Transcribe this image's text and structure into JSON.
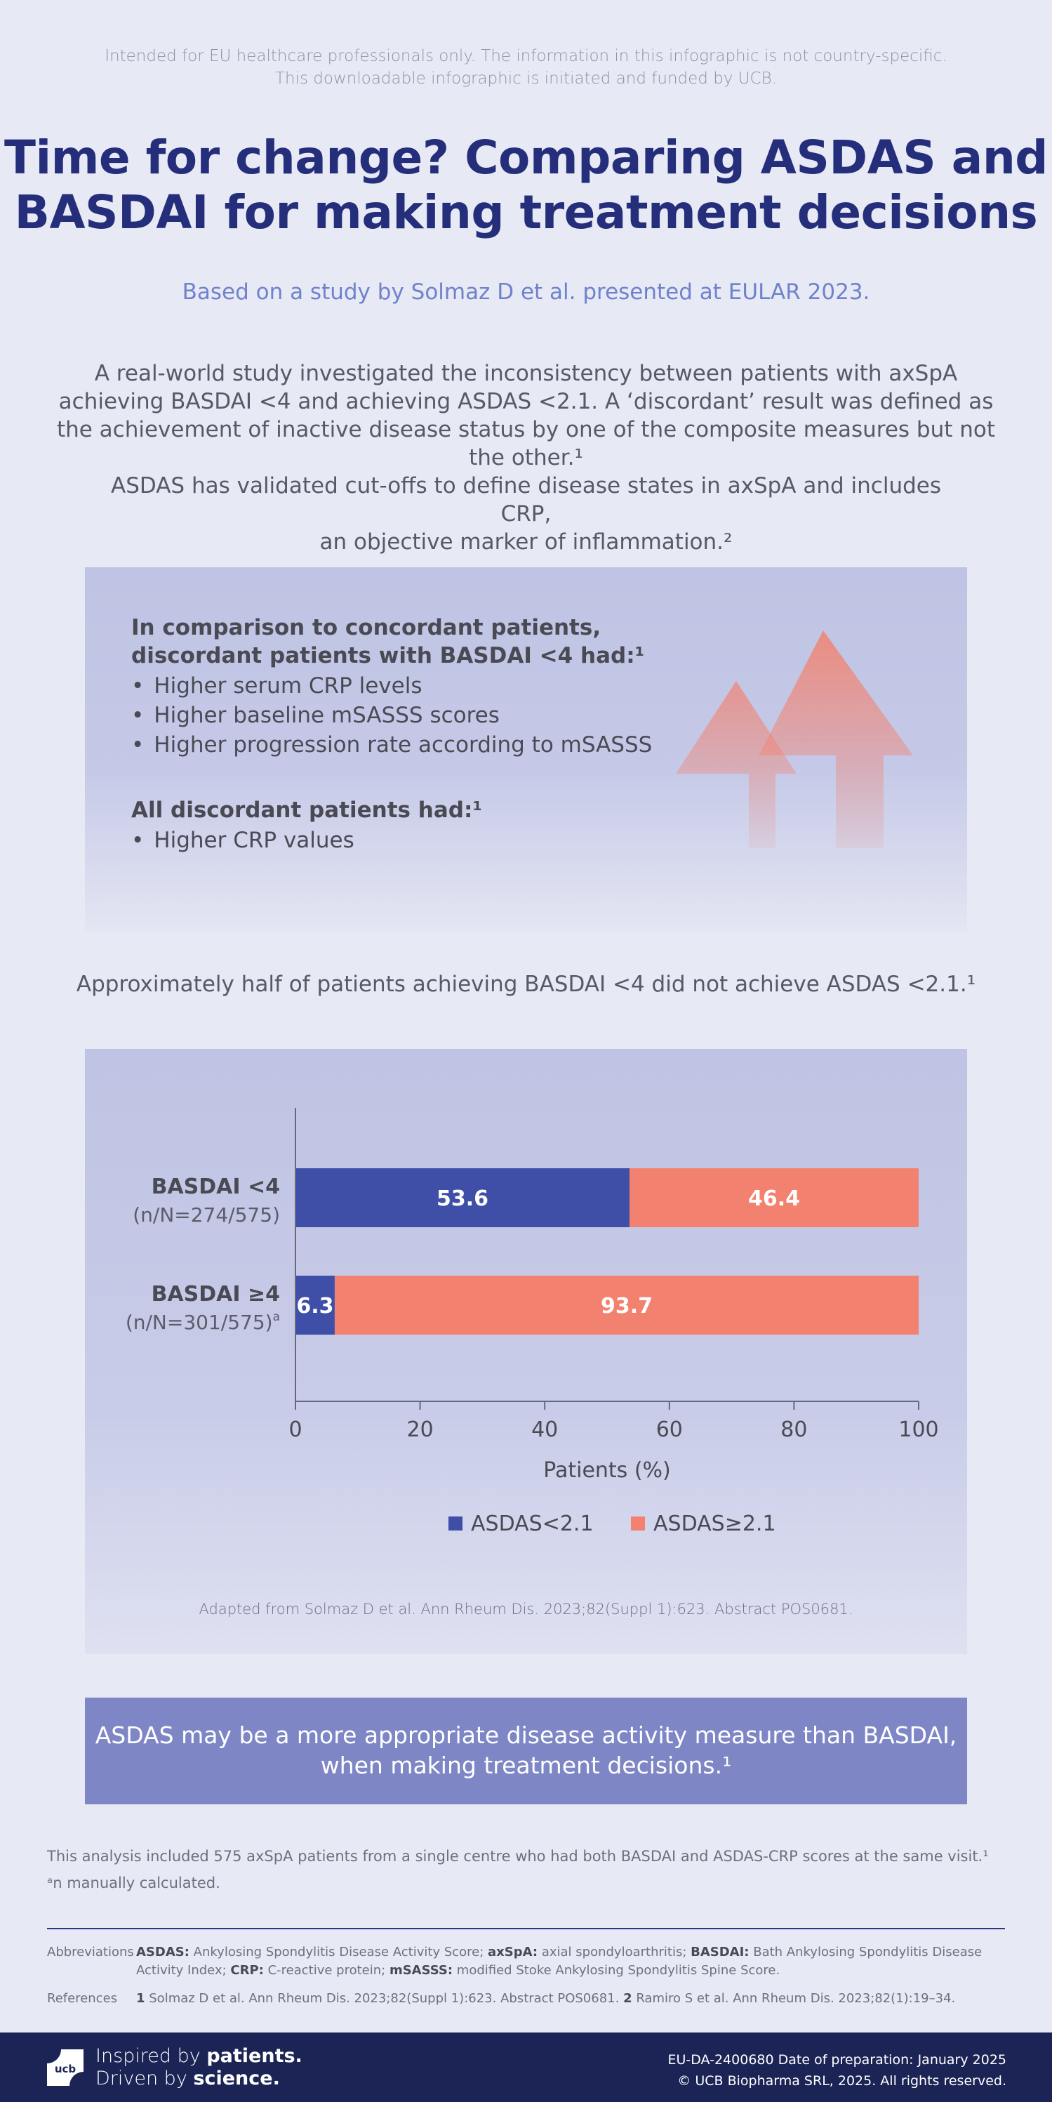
{
  "disclaimer": {
    "line1": "Intended for EU healthcare professionals only. The information in this infographic is not country-specific.",
    "line2": "This downloadable infographic is initiated and funded by UCB."
  },
  "title": {
    "line1": "Time for change? Comparing ASDAS and",
    "line2": "BASDAI for making treatment decisions"
  },
  "subtitle": "Based on a study by Solmaz D et al. presented at EULAR 2023.",
  "intro": "A real-world study investigated the inconsistency between patients with axSpA achieving BASDAI <4 and achieving ASDAS <2.1. A ‘discordant’ result was defined as the achievement of inactive disease status by one of the composite measures but not the other.¹",
  "cutoffs": {
    "line1": "ASDAS has validated cut-offs to define disease states in axSpA and includes CRP,",
    "line2": "an objective marker of inflammation.²"
  },
  "findings": {
    "heading1_line1": "In comparison to concordant patients,",
    "heading1_line2": "discordant patients with BASDAI <4 had:¹",
    "bullets1": [
      "Higher serum CRP levels",
      "Higher baseline mSASSS scores",
      "Higher progression rate according to mSASSS"
    ],
    "heading2": "All discordant patients had:¹",
    "bullets2": [
      "Higher CRP values"
    ],
    "arrow_icon": "up-arrow-icon"
  },
  "approx": "Approximately half of patients achieving BASDAI <4 did not achieve ASDAS <2.1.¹",
  "chart_data": {
    "type": "bar",
    "orientation": "horizontal",
    "stacked": true,
    "categories": [
      {
        "label": "BASDAI <4",
        "sublabel": "(n/N=274/575)",
        "sup": ""
      },
      {
        "label": "BASDAI ≥4",
        "sublabel": "(n/N=301/575)",
        "sup": "a"
      }
    ],
    "series": [
      {
        "name": "ASDAS<2.1",
        "color": "#3f4fa8",
        "values": [
          53.6,
          6.3
        ]
      },
      {
        "name": "ASDAS≥2.1",
        "color": "#f2826f",
        "values": [
          46.4,
          93.7
        ]
      }
    ],
    "xlabel": "Patients (%)",
    "xlim": [
      0,
      100
    ],
    "xticks": [
      "0",
      "20",
      "40",
      "60",
      "80",
      "100"
    ],
    "grid": false,
    "legend": "bottom"
  },
  "adapted": "Adapted from Solmaz D et al. Ann Rheum Dis. 2023;82(Suppl 1):623. Abstract POS0681.",
  "conclusion": {
    "line1": "ASDAS may be a more appropriate disease activity measure than BASDAI,",
    "line2": "when making treatment decisions.¹"
  },
  "notes": {
    "analysis": "This analysis included 575 axSpA patients from a single centre who had both BASDAI and ASDAS-CRP scores at the same visit.¹",
    "manual": "ᵃn manually calculated."
  },
  "abbreviations": {
    "label": "Abbreviations",
    "items": [
      {
        "term": "ASDAS:",
        "def": " Ankylosing Spondylitis Disease Activity Score; "
      },
      {
        "term": "axSpA:",
        "def": " axial spondyloarthritis; "
      },
      {
        "term": "BASDAI:",
        "def": " Bath Ankylosing Spondylitis Disease Activity Index; "
      },
      {
        "term": "CRP:",
        "def": " C-reactive protein; "
      },
      {
        "term": "mSASSS:",
        "def": " modified Stoke Ankylosing Spondylitis Spine Score."
      }
    ]
  },
  "references": {
    "label": "References",
    "items": [
      {
        "num": "1",
        "text": " Solmaz D et al. Ann Rheum Dis. 2023;82(Suppl 1):623. Abstract POS0681. "
      },
      {
        "num": "2",
        "text": " Ramiro S et al. Ann Rheum Dis. 2023;82(1):19–34."
      }
    ]
  },
  "footer": {
    "logo_icon": "ucb-logo-icon",
    "tag1_pre": "Inspired by ",
    "tag1_strong": "patients.",
    "tag2_pre": "Driven by ",
    "tag2_strong": "science.",
    "code": "EU-DA-2400680 Date of preparation: January 2025",
    "copyright": "© UCB Biopharma SRL, 2025. All rights reserved."
  }
}
